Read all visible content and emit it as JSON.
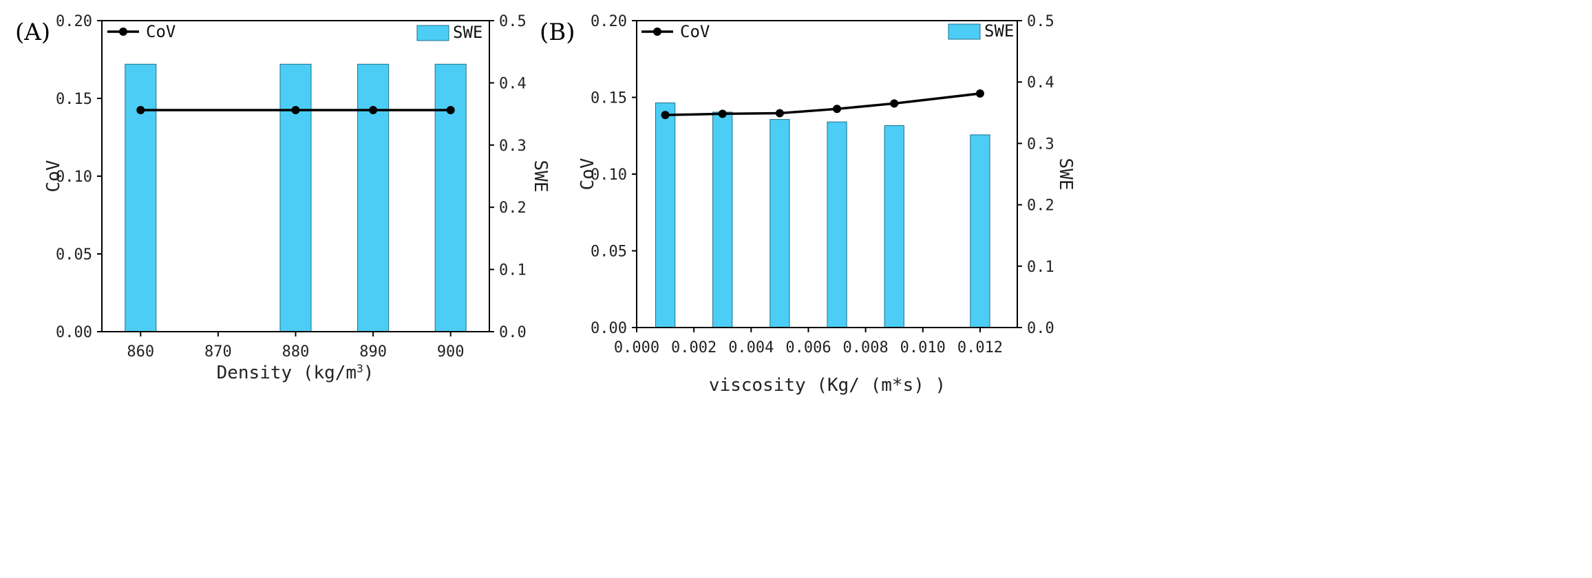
{
  "chart_data": [
    {
      "panel_label": "(A)",
      "type": "bar",
      "xlabel": "Density (kg/m",
      "xlabel_sup": "3",
      "xlabel_end": ")",
      "ylabel_left": "CoV",
      "ylabel_right": "SWE",
      "xlim": [
        855,
        905
      ],
      "xticks": [
        860,
        870,
        880,
        890,
        900
      ],
      "xtick_labels": [
        "860",
        "870",
        "880",
        "890",
        "900"
      ],
      "ylim_left": [
        0,
        0.2
      ],
      "yticks_left": [
        "0.00",
        "0.05",
        "0.10",
        "0.15",
        "0.20"
      ],
      "ylim_right": [
        0,
        0.5
      ],
      "yticks_right": [
        "0.0",
        "0.1",
        "0.2",
        "0.3",
        "0.4",
        "0.5"
      ],
      "bar_width": 4,
      "series": [
        {
          "name": "SWE",
          "kind": "bar",
          "axis": "right",
          "x": [
            860,
            880,
            890,
            900
          ],
          "values": [
            0.43,
            0.43,
            0.43,
            0.43
          ]
        },
        {
          "name": "CoV",
          "kind": "line",
          "axis": "left",
          "x": [
            860,
            880,
            890,
            900
          ],
          "values": [
            0.1425,
            0.1425,
            0.1425,
            0.1425
          ]
        }
      ],
      "legend": {
        "line_label": "CoV",
        "line_position": "top-left",
        "bar_label": "SWE",
        "bar_position": "top-right"
      }
    },
    {
      "panel_label": "(B)",
      "type": "bar",
      "xlabel": "viscosity (Kg/ (m*s) )",
      "xlabel_sup": "",
      "xlabel_end": "",
      "ylabel_left": "CoV",
      "ylabel_right": "SWE",
      "xlim": [
        0.0,
        0.0133
      ],
      "xticks": [
        0.0,
        0.002,
        0.004,
        0.006,
        0.008,
        0.01,
        0.012
      ],
      "xtick_labels": [
        "0.000",
        "0.002",
        "0.004",
        "0.006",
        "0.008",
        "0.010",
        "0.012"
      ],
      "ylim_left": [
        0,
        0.2
      ],
      "yticks_left": [
        "0.00",
        "0.05",
        "0.10",
        "0.15",
        "0.20"
      ],
      "ylim_right": [
        0,
        0.5
      ],
      "yticks_right": [
        "0.0",
        "0.1",
        "0.2",
        "0.3",
        "0.4",
        "0.5"
      ],
      "bar_width": 0.00068,
      "series": [
        {
          "name": "SWE",
          "kind": "bar",
          "axis": "right",
          "x": [
            0.001,
            0.003,
            0.005,
            0.007,
            0.009,
            0.012
          ],
          "values": [
            0.366,
            0.351,
            0.339,
            0.335,
            0.329,
            0.314
          ]
        },
        {
          "name": "CoV",
          "kind": "line",
          "axis": "left",
          "x": [
            0.001,
            0.003,
            0.005,
            0.007,
            0.009,
            0.012
          ],
          "values": [
            0.1385,
            0.1393,
            0.1397,
            0.1425,
            0.146,
            0.1525
          ]
        }
      ],
      "legend": {
        "line_label": "CoV",
        "line_position": "top-left",
        "bar_label": "SWE",
        "bar_position": "top-right"
      }
    }
  ]
}
